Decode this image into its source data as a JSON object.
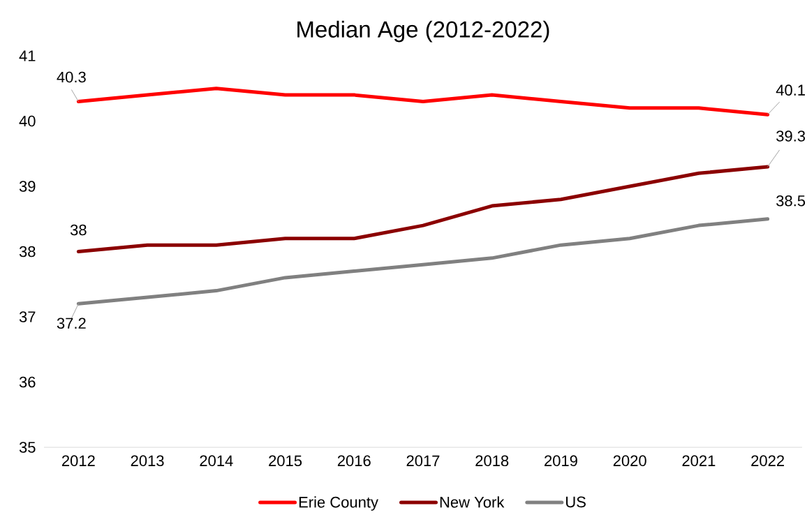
{
  "chart_data": {
    "type": "line",
    "title": "Median Age (2012-2022)",
    "categories": [
      "2012",
      "2013",
      "2014",
      "2015",
      "2016",
      "2017",
      "2018",
      "2019",
      "2020",
      "2021",
      "2022"
    ],
    "series": [
      {
        "name": "Erie County",
        "color": "#ff0000",
        "values": [
          40.3,
          40.4,
          40.5,
          40.4,
          40.4,
          40.3,
          40.4,
          40.3,
          40.2,
          40.2,
          40.1
        ],
        "value_labels": [
          "40.3",
          null,
          null,
          null,
          null,
          null,
          null,
          null,
          null,
          null,
          "40.1"
        ]
      },
      {
        "name": "New York",
        "color": "#8b0000",
        "values": [
          38,
          38.1,
          38.1,
          38.2,
          38.2,
          38.4,
          38.7,
          38.8,
          39,
          39.2,
          39.3
        ],
        "value_labels": [
          "38",
          null,
          null,
          null,
          null,
          null,
          null,
          null,
          null,
          null,
          "39.3"
        ]
      },
      {
        "name": "US",
        "color": "#808080",
        "values": [
          37.2,
          37.3,
          37.4,
          37.6,
          37.7,
          37.8,
          37.9,
          38.1,
          38.2,
          38.4,
          38.5
        ],
        "value_labels": [
          "37.2",
          null,
          null,
          null,
          null,
          null,
          null,
          null,
          null,
          null,
          "38.5"
        ]
      }
    ],
    "ylim": [
      35,
      41
    ],
    "yticks": [
      35,
      36,
      37,
      38,
      39,
      40,
      41
    ],
    "legend": "bottom",
    "marker": "none",
    "line_style": "solid"
  }
}
